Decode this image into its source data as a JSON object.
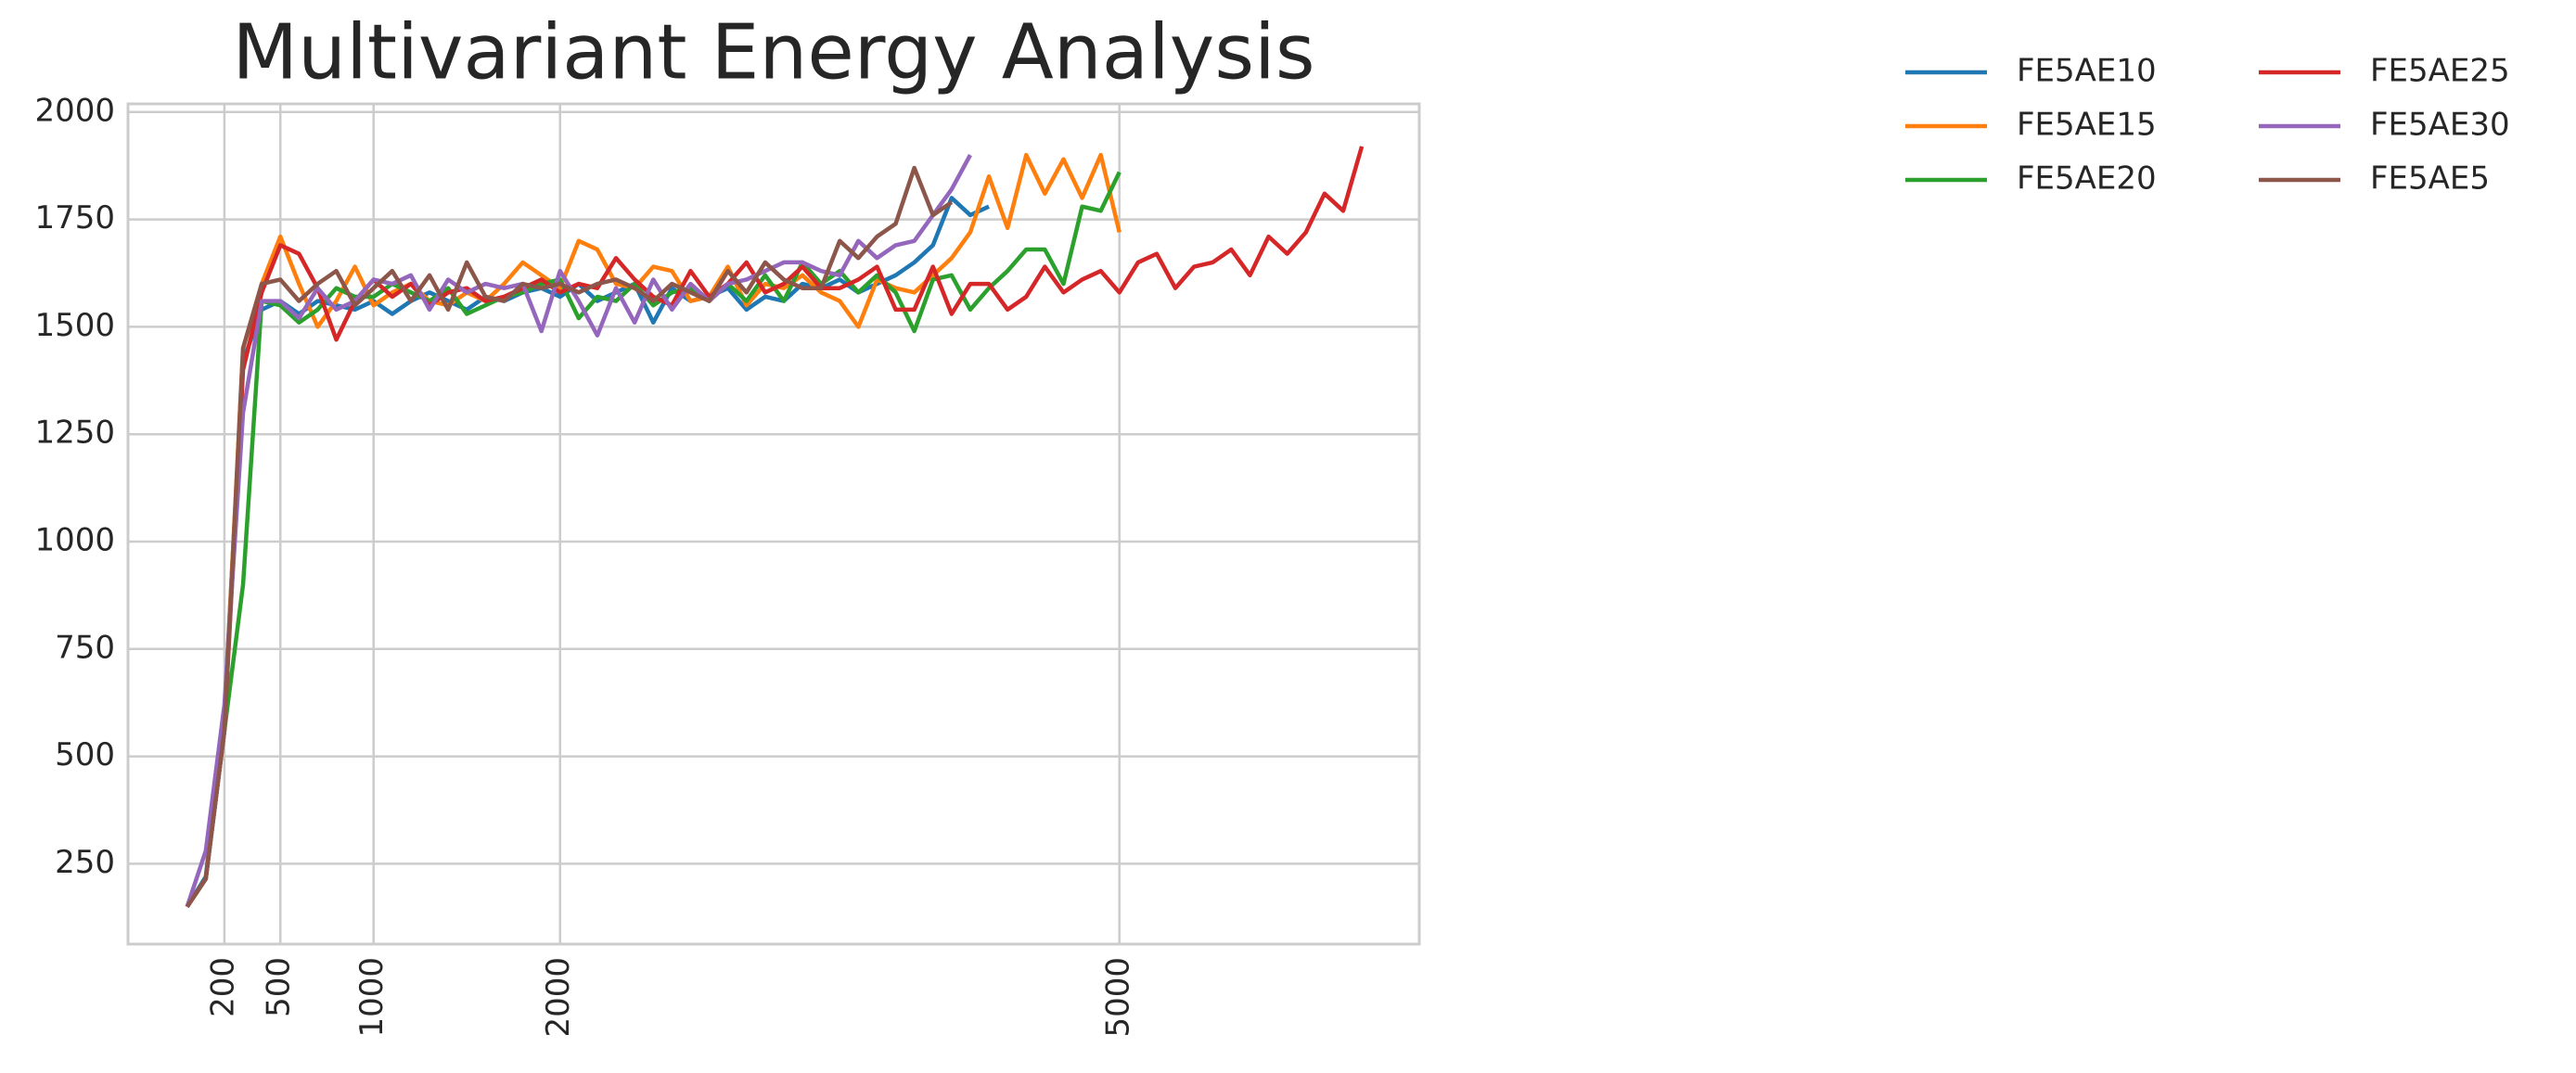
{
  "chart_data": {
    "type": "line",
    "title": "Multivariant Energy Analysis",
    "x": [
      0,
      100,
      200,
      300,
      400,
      500,
      600,
      700,
      800,
      900,
      1000,
      1100,
      1200,
      1300,
      1400,
      1500,
      1600,
      1700,
      1800,
      1900,
      2000,
      2100,
      2200,
      2300,
      2400,
      2500,
      2600,
      2700,
      2800,
      2900,
      3000,
      3100,
      3200,
      3300,
      3400,
      3500,
      3600,
      3700,
      3800,
      3900,
      4000,
      4100,
      4200,
      4300,
      4400,
      4500,
      4600,
      4700,
      4800,
      4900,
      5000,
      5100,
      5200,
      5300,
      5400,
      5500,
      5600,
      5700,
      5800,
      5900,
      6000,
      6100,
      6200,
      6300
    ],
    "series": [
      {
        "name": "FE5AE10",
        "color": "#1f77b4",
        "values": [
          150,
          220,
          600,
          1420,
          1540,
          1560,
          1530,
          1560,
          1550,
          1540,
          1560,
          1530,
          1560,
          1580,
          1560,
          1540,
          1570,
          1560,
          1580,
          1590,
          1570,
          1600,
          1560,
          1580,
          1600,
          1510,
          1590,
          1560,
          1570,
          1590,
          1540,
          1570,
          1560,
          1600,
          1590,
          1610,
          1580,
          1600,
          1620,
          1650,
          1690,
          1800,
          1760,
          1780,
          null,
          null,
          null,
          null,
          null,
          null,
          null,
          null,
          null,
          null,
          null,
          null,
          null,
          null,
          null,
          null,
          null,
          null,
          null,
          null
        ]
      },
      {
        "name": "FE5AE15",
        "color": "#ff7f0e",
        "values": [
          150,
          215,
          580,
          1450,
          1600,
          1710,
          1600,
          1500,
          1560,
          1640,
          1550,
          1580,
          1600,
          1560,
          1550,
          1580,
          1560,
          1600,
          1650,
          1620,
          1590,
          1700,
          1680,
          1600,
          1590,
          1640,
          1630,
          1560,
          1570,
          1640,
          1550,
          1600,
          1590,
          1620,
          1580,
          1560,
          1500,
          1610,
          1590,
          1580,
          1620,
          1660,
          1720,
          1850,
          1730,
          1900,
          1810,
          1890,
          1800,
          1900,
          1720,
          null,
          null,
          null,
          null,
          null,
          null,
          null,
          null,
          null,
          null,
          null,
          null,
          null
        ]
      },
      {
        "name": "FE5AE20",
        "color": "#2ca02c",
        "values": [
          150,
          215,
          560,
          900,
          1560,
          1550,
          1510,
          1540,
          1590,
          1570,
          1570,
          1600,
          1580,
          1560,
          1590,
          1530,
          1550,
          1570,
          1580,
          1600,
          1610,
          1520,
          1570,
          1560,
          1600,
          1550,
          1580,
          1590,
          1560,
          1600,
          1560,
          1620,
          1560,
          1650,
          1600,
          1630,
          1580,
          1620,
          1580,
          1490,
          1610,
          1620,
          1540,
          1590,
          1630,
          1680,
          1680,
          1600,
          1780,
          1770,
          1860,
          null,
          null,
          null,
          null,
          null,
          null,
          null,
          null,
          null,
          null,
          null,
          null,
          null
        ]
      },
      {
        "name": "FE5AE25",
        "color": "#d62728",
        "values": [
          150,
          215,
          560,
          1400,
          1580,
          1690,
          1670,
          1590,
          1470,
          1560,
          1610,
          1570,
          1600,
          1550,
          1580,
          1590,
          1560,
          1570,
          1590,
          1610,
          1580,
          1600,
          1590,
          1660,
          1610,
          1570,
          1550,
          1630,
          1570,
          1600,
          1650,
          1580,
          1600,
          1640,
          1590,
          1590,
          1610,
          1640,
          1540,
          1540,
          1640,
          1530,
          1600,
          1600,
          1540,
          1570,
          1640,
          1580,
          1610,
          1630,
          1580,
          1650,
          1670,
          1590,
          1640,
          1650,
          1680,
          1620,
          1710,
          1670,
          1720,
          1810,
          1770,
          1920
        ]
      },
      {
        "name": "FE5AE30",
        "color": "#9467bd",
        "values": [
          150,
          280,
          620,
          1300,
          1560,
          1560,
          1520,
          1590,
          1540,
          1560,
          1610,
          1600,
          1620,
          1540,
          1610,
          1580,
          1600,
          1590,
          1600,
          1490,
          1630,
          1560,
          1480,
          1590,
          1510,
          1610,
          1540,
          1600,
          1560,
          1600,
          1610,
          1630,
          1650,
          1650,
          1630,
          1620,
          1700,
          1660,
          1690,
          1700,
          1760,
          1820,
          1900,
          null,
          null,
          null,
          null,
          null,
          null,
          null,
          null,
          null,
          null,
          null,
          null,
          null,
          null,
          null,
          null,
          null,
          null,
          null,
          null,
          null
        ]
      },
      {
        "name": "FE5AE5",
        "color": "#8c564b",
        "values": [
          150,
          215,
          560,
          1450,
          1600,
          1610,
          1560,
          1600,
          1630,
          1550,
          1590,
          1630,
          1560,
          1620,
          1540,
          1650,
          1570,
          1560,
          1600,
          1590,
          1600,
          1580,
          1600,
          1610,
          1590,
          1560,
          1600,
          1580,
          1560,
          1630,
          1580,
          1650,
          1610,
          1590,
          1590,
          1700,
          1660,
          1710,
          1740,
          1870,
          1760,
          1790,
          null,
          null,
          null,
          null,
          null,
          null,
          null,
          null,
          null,
          null,
          null,
          null,
          null,
          null,
          null,
          null,
          null,
          null,
          null,
          null,
          null,
          null
        ]
      }
    ],
    "xlim": [
      -317,
      6608
    ],
    "ylim": [
      63,
      2019
    ],
    "xticks": [
      200,
      500,
      1000,
      2000,
      5000
    ],
    "yticks": [
      250,
      500,
      750,
      1000,
      1250,
      1500,
      1750,
      2000
    ],
    "grid": true,
    "legend": "outside upper right"
  }
}
